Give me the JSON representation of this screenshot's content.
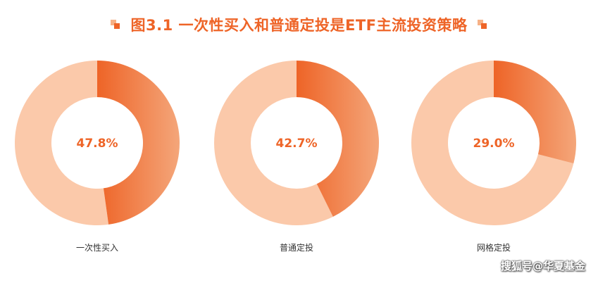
{
  "title": "图3.1  一次性买入和普通定投是ETF主流投资策略",
  "watermark": "搜狐号@华夏基金",
  "colors": {
    "accent": "#ee6427",
    "accent_light": "#f4a67a",
    "remainder": "#fbc9aa",
    "deco_light": "#f6b186"
  },
  "chart_data": {
    "type": "pie",
    "variant": "donut",
    "title": "图3.1  一次性买入和普通定投是ETF主流投资策略",
    "categories": [
      "一次性买入",
      "普通定投",
      "网格定投"
    ],
    "values": [
      47.8,
      42.7,
      29.0
    ],
    "labels": [
      "47.8%",
      "42.7%",
      "29.0%"
    ],
    "unit": "%"
  }
}
